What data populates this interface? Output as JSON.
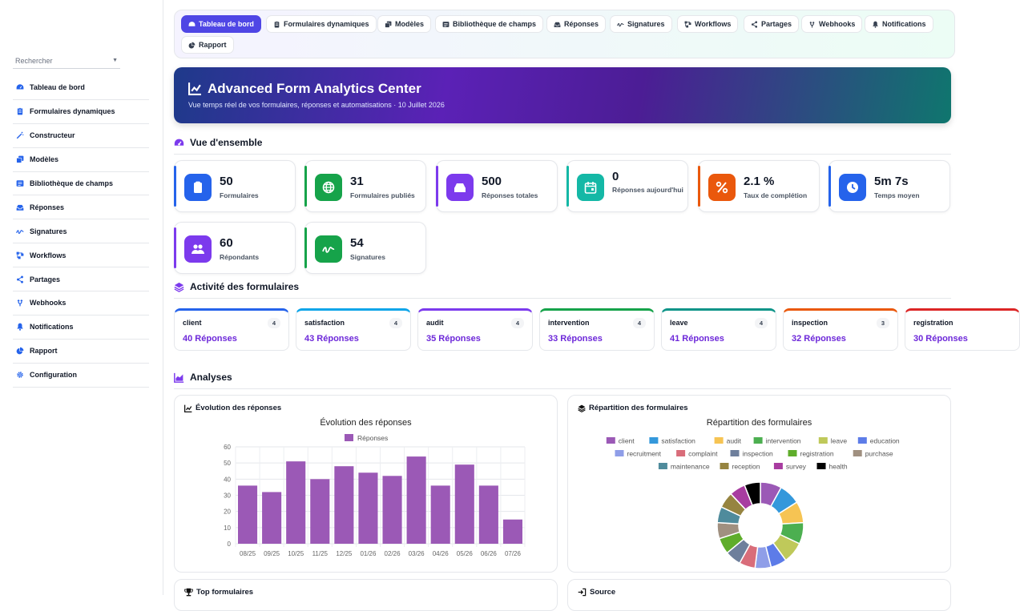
{
  "sidebar": {
    "search_placeholder": "Rechercher",
    "items": [
      {
        "label": "Tableau de bord",
        "icon": "dashboard-icon"
      },
      {
        "label": "Formulaires dynamiques",
        "icon": "clipboard-icon"
      },
      {
        "label": "Constructeur",
        "icon": "magic-wand-icon"
      },
      {
        "label": "Modèles",
        "icon": "copy-icon"
      },
      {
        "label": "Bibliothèque de champs",
        "icon": "list-box-icon"
      },
      {
        "label": "Réponses",
        "icon": "inbox-icon"
      },
      {
        "label": "Signatures",
        "icon": "signature-icon"
      },
      {
        "label": "Workflows",
        "icon": "workflow-icon"
      },
      {
        "label": "Partages",
        "icon": "share-icon"
      },
      {
        "label": "Webhooks",
        "icon": "webhook-icon"
      },
      {
        "label": "Notifications",
        "icon": "bell-icon"
      },
      {
        "label": "Rapport",
        "icon": "chart-pie-icon"
      },
      {
        "label": "Configuration",
        "icon": "gear-icon"
      }
    ]
  },
  "tabs": [
    {
      "label": "Tableau de bord",
      "active": true
    },
    {
      "label": "Formulaires dynamiques"
    },
    {
      "label": "Modèles"
    },
    {
      "label": "Bibliothèque de champs"
    },
    {
      "label": "Réponses"
    },
    {
      "label": "Signatures"
    },
    {
      "label": "Workflows"
    },
    {
      "label": "Partages"
    },
    {
      "label": "Webhooks"
    },
    {
      "label": "Notifications"
    },
    {
      "label": "Rapport"
    }
  ],
  "hero": {
    "title": "Advanced Form Analytics Center",
    "subtitle": "Vue temps réel de vos formulaires, réponses et automatisations · 10 Juillet 2026"
  },
  "overview": {
    "title": "Vue d'ensemble",
    "stats": [
      {
        "value": "50",
        "label": "Formulaires",
        "color": "#2563eb"
      },
      {
        "value": "31",
        "label": "Formulaires publiés",
        "color": "#16a34a"
      },
      {
        "value": "500",
        "label": "Réponses totales",
        "color": "#7c3aed"
      },
      {
        "value": "0",
        "label": "Réponses aujourd'hui",
        "color": "#14b8a6"
      },
      {
        "value": "2.1 %",
        "label": "Taux de complétion",
        "color": "#ea580c"
      },
      {
        "value": "5m 7s",
        "label": "Temps moyen",
        "color": "#2563eb"
      },
      {
        "value": "60",
        "label": "Répondants",
        "color": "#7c3aed"
      },
      {
        "value": "54",
        "label": "Signatures",
        "color": "#16a34a"
      }
    ]
  },
  "activity": {
    "title": "Activité des formulaires",
    "items": [
      {
        "name": "client",
        "count": "4",
        "responses": "40 Réponses",
        "color": "#2563eb"
      },
      {
        "name": "satisfaction",
        "count": "4",
        "responses": "43 Réponses",
        "color": "#0ea5e9"
      },
      {
        "name": "audit",
        "count": "4",
        "responses": "35 Réponses",
        "color": "#7c3aed"
      },
      {
        "name": "intervention",
        "count": "4",
        "responses": "33 Réponses",
        "color": "#16a34a"
      },
      {
        "name": "leave",
        "count": "4",
        "responses": "41 Réponses",
        "color": "#0d9488"
      },
      {
        "name": "inspection",
        "count": "3",
        "responses": "32 Réponses",
        "color": "#ea580c"
      },
      {
        "name": "registration",
        "count": "",
        "responses": "30 Réponses",
        "color": "#dc2626"
      }
    ]
  },
  "analyses": {
    "title": "Analyses",
    "evolution_card_title": "Évolution des réponses",
    "repartition_card_title": "Répartition des formulaires",
    "top_card_title": "Top formulaires",
    "source_card_title": "Source"
  },
  "chart_data": [
    {
      "type": "bar",
      "title": "Évolution des réponses",
      "categories": [
        "08/25",
        "09/25",
        "10/25",
        "11/25",
        "12/25",
        "01/26",
        "02/26",
        "03/26",
        "04/26",
        "05/26",
        "06/26",
        "07/26"
      ],
      "series": [
        {
          "name": "Réponses",
          "values": [
            36,
            32,
            51,
            40,
            48,
            44,
            42,
            54,
            36,
            49,
            36,
            15
          ],
          "color": "#9b59b6"
        }
      ],
      "ylim": [
        0,
        60
      ],
      "yticks": [
        0,
        10,
        20,
        30,
        40,
        50,
        60
      ],
      "grid": true,
      "legend": "top"
    },
    {
      "type": "pie",
      "title": "Répartition des formulaires",
      "legend": "top",
      "slices": [
        {
          "label": "client",
          "value": 4,
          "color": "#9b59b6"
        },
        {
          "label": "satisfaction",
          "value": 4,
          "color": "#3498db"
        },
        {
          "label": "audit",
          "value": 4,
          "color": "#f6c453"
        },
        {
          "label": "intervention",
          "value": 4,
          "color": "#4caf50"
        },
        {
          "label": "leave",
          "value": 4,
          "color": "#bfc95a"
        },
        {
          "label": "education",
          "value": 3,
          "color": "#5d7ce8"
        },
        {
          "label": "recruitment",
          "value": 3,
          "color": "#8f9ee8"
        },
        {
          "label": "complaint",
          "value": 3,
          "color": "#d96d7a"
        },
        {
          "label": "inspection",
          "value": 3,
          "color": "#6e7f9c"
        },
        {
          "label": "registration",
          "value": 3,
          "color": "#5fad2b"
        },
        {
          "label": "purchase",
          "value": 3,
          "color": "#a09080"
        },
        {
          "label": "maintenance",
          "value": 3,
          "color": "#4f8b9c"
        },
        {
          "label": "reception",
          "value": 3,
          "color": "#968440"
        },
        {
          "label": "survey",
          "value": 3,
          "color": "#a83ca0"
        },
        {
          "label": "health",
          "value": 3,
          "color": "#000000"
        }
      ]
    }
  ]
}
